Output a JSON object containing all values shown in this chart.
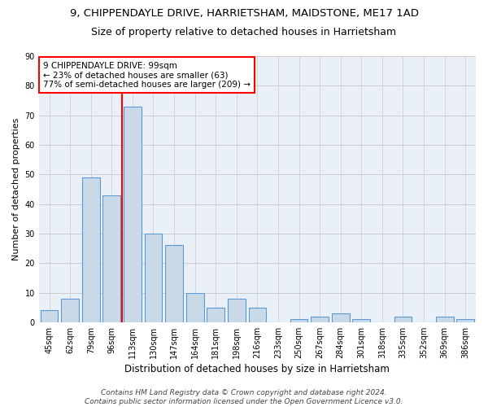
{
  "title_line1": "9, CHIPPENDAYLE DRIVE, HARRIETSHAM, MAIDSTONE, ME17 1AD",
  "title_line2": "Size of property relative to detached houses in Harrietsham",
  "xlabel": "Distribution of detached houses by size in Harrietsham",
  "ylabel": "Number of detached properties",
  "categories": [
    "45sqm",
    "62sqm",
    "79sqm",
    "96sqm",
    "113sqm",
    "130sqm",
    "147sqm",
    "164sqm",
    "181sqm",
    "198sqm",
    "216sqm",
    "233sqm",
    "250sqm",
    "267sqm",
    "284sqm",
    "301sqm",
    "318sqm",
    "335sqm",
    "352sqm",
    "369sqm",
    "386sqm"
  ],
  "values": [
    4,
    8,
    49,
    43,
    73,
    30,
    26,
    10,
    5,
    8,
    5,
    0,
    1,
    2,
    3,
    1,
    0,
    2,
    0,
    2,
    1
  ],
  "bar_color": "#c9d9e8",
  "bar_edge_color": "#5b9bd5",
  "vline_color": "red",
  "vline_pos": 3.5,
  "annotation_text": "9 CHIPPENDAYLE DRIVE: 99sqm\n← 23% of detached houses are smaller (63)\n77% of semi-detached houses are larger (209) →",
  "annotation_box_color": "white",
  "annotation_box_edge_color": "red",
  "ylim": [
    0,
    90
  ],
  "yticks": [
    0,
    10,
    20,
    30,
    40,
    50,
    60,
    70,
    80,
    90
  ],
  "grid_color": "#cccccc",
  "background_color": "#eaf0f8",
  "footer_text": "Contains HM Land Registry data © Crown copyright and database right 2024.\nContains public sector information licensed under the Open Government Licence v3.0.",
  "title_fontsize": 9.5,
  "subtitle_fontsize": 9,
  "xlabel_fontsize": 8.5,
  "ylabel_fontsize": 8,
  "tick_fontsize": 7,
  "annotation_fontsize": 7.5,
  "footer_fontsize": 6.5
}
